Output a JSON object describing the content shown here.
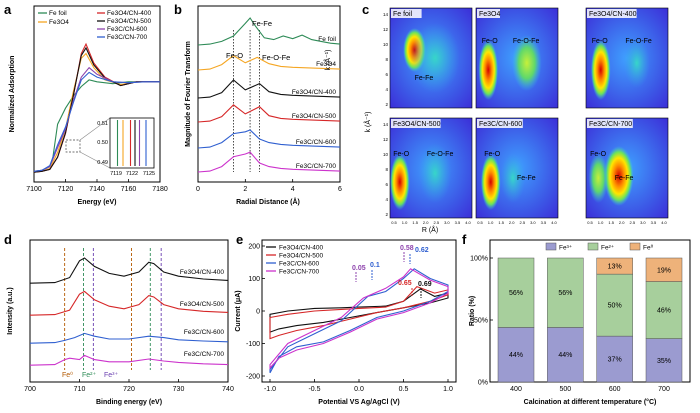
{
  "chart_data": [
    {
      "panel": "a",
      "type": "line",
      "xlabel": "Energy (eV)",
      "ylabel": "Normalized Adsorption",
      "xlim": [
        7100,
        7180
      ],
      "x_ticks": [
        "7100",
        "7120",
        "7140",
        "7160",
        "7180"
      ],
      "legend_left": [
        "Fe foil",
        "Fe3O4"
      ],
      "legend_right": [
        "Fe3O4/CN-400",
        "Fe3O4/CN-500",
        "Fe3C/CN-600",
        "Fe3C/CN-700"
      ],
      "colors": [
        "#2e8b57",
        "#f5a623",
        "#d62728",
        "#111111",
        "#8e44ad",
        "#2f5fd0"
      ],
      "inset": {
        "x_ticks": [
          "7119",
          "7122",
          "7125"
        ],
        "y_ticks": [
          "0.51",
          "0.50",
          "0.49"
        ],
        "edges": [
          7118.6,
          7119.7,
          7121.2,
          7122.1,
          7123.0,
          7124.3
        ]
      },
      "series": [
        {
          "name": "Fe foil",
          "x": [
            7100,
            7105,
            7110,
            7112,
            7115,
            7120,
            7125,
            7130,
            7135,
            7140,
            7150,
            7160,
            7170,
            7180
          ],
          "y": [
            0.05,
            0.06,
            0.1,
            0.2,
            0.55,
            0.72,
            0.85,
            0.95,
            1.02,
            1.0,
            0.98,
            1.0,
            1.0,
            1.0
          ]
        },
        {
          "name": "Fe3O4",
          "x": [
            7100,
            7105,
            7110,
            7115,
            7120,
            7125,
            7130,
            7133,
            7138,
            7145,
            7155,
            7165,
            7180
          ],
          "y": [
            0.04,
            0.05,
            0.08,
            0.25,
            0.5,
            0.9,
            1.25,
            1.3,
            1.15,
            1.02,
            0.97,
            1.0,
            1.0
          ]
        },
        {
          "name": "Fe3O4/CN-400",
          "x": [
            7100,
            7105,
            7110,
            7115,
            7120,
            7125,
            7130,
            7133,
            7138,
            7145,
            7155,
            7165,
            7180
          ],
          "y": [
            0.04,
            0.05,
            0.07,
            0.2,
            0.45,
            0.85,
            1.3,
            1.4,
            1.2,
            1.05,
            0.96,
            1.0,
            1.0
          ]
        },
        {
          "name": "Fe3O4/CN-500",
          "x": [
            7100,
            7105,
            7110,
            7115,
            7120,
            7125,
            7130,
            7133,
            7138,
            7145,
            7155,
            7165,
            7180
          ],
          "y": [
            0.04,
            0.05,
            0.07,
            0.2,
            0.46,
            0.86,
            1.28,
            1.36,
            1.18,
            1.04,
            0.96,
            1.0,
            1.0
          ]
        },
        {
          "name": "Fe3C/CN-600",
          "x": [
            7100,
            7105,
            7110,
            7115,
            7120,
            7125,
            7130,
            7135,
            7140,
            7150,
            7160,
            7170,
            7180
          ],
          "y": [
            0.05,
            0.06,
            0.1,
            0.3,
            0.5,
            0.8,
            1.05,
            1.15,
            1.08,
            1.0,
            0.99,
            1.0,
            1.0
          ]
        },
        {
          "name": "Fe3C/CN-700",
          "x": [
            7100,
            7105,
            7110,
            7115,
            7120,
            7125,
            7130,
            7135,
            7140,
            7150,
            7160,
            7170,
            7180
          ],
          "y": [
            0.05,
            0.06,
            0.11,
            0.33,
            0.52,
            0.78,
            1.02,
            1.1,
            1.05,
            1.0,
            0.99,
            1.0,
            1.0
          ]
        }
      ]
    },
    {
      "panel": "b",
      "type": "line",
      "xlabel": "Radial Distance (Å)",
      "ylabel": "Magnitude of Fourier Transform",
      "xlim": [
        0,
        6
      ],
      "x_ticks": [
        "0",
        "2",
        "4",
        "6"
      ],
      "annotations": [
        "Fe-Fe",
        "Fe-O",
        "Fe-O-Fe"
      ],
      "ref_lines": [
        1.5,
        2.2,
        2.6
      ],
      "series": [
        {
          "name": "Fe foil",
          "color": "#2e8b57",
          "x": [
            0,
            0.5,
            1,
            1.5,
            2,
            2.2,
            2.4,
            2.8,
            3.2,
            3.6,
            4,
            4.4,
            4.8,
            5.2,
            5.6,
            6
          ],
          "y": [
            0,
            0.05,
            0.2,
            0.5,
            1.2,
            1.5,
            1.1,
            0.4,
            0.3,
            0.5,
            0.35,
            0.55,
            0.3,
            0.2,
            0.1,
            0.05
          ]
        },
        {
          "name": "Fe3O4",
          "color": "#f5a623",
          "x": [
            0,
            0.5,
            1,
            1.5,
            2,
            2.5,
            3,
            3.5,
            4,
            5,
            6
          ],
          "y": [
            0,
            0.05,
            0.3,
            0.8,
            0.4,
            0.7,
            0.35,
            0.2,
            0.15,
            0.1,
            0.05
          ]
        },
        {
          "name": "Fe3O4/CN-400",
          "color": "#111111",
          "x": [
            0,
            0.5,
            1,
            1.5,
            2,
            2.6,
            3,
            3.5,
            4,
            5,
            6
          ],
          "y": [
            0,
            0.05,
            0.3,
            1.0,
            0.45,
            0.8,
            0.35,
            0.2,
            0.15,
            0.1,
            0.05
          ]
        },
        {
          "name": "Fe3O4/CN-500",
          "color": "#d62728",
          "x": [
            0,
            0.5,
            1,
            1.5,
            2,
            2.6,
            3,
            3.5,
            4,
            5,
            6
          ],
          "y": [
            0,
            0.05,
            0.3,
            0.95,
            0.45,
            0.85,
            0.35,
            0.2,
            0.15,
            0.1,
            0.05
          ]
        },
        {
          "name": "Fe3C/CN-600",
          "color": "#2f5fd0",
          "x": [
            0,
            0.5,
            1,
            1.5,
            2,
            2.2,
            2.6,
            3,
            3.5,
            4,
            5,
            6
          ],
          "y": [
            0,
            0.05,
            0.3,
            0.8,
            0.9,
            1.0,
            0.5,
            0.3,
            0.2,
            0.15,
            0.1,
            0.05
          ]
        },
        {
          "name": "Fe3C/CN-700",
          "color": "#cc33cc",
          "x": [
            0,
            0.5,
            1,
            1.5,
            2,
            2.2,
            2.6,
            3,
            3.5,
            4,
            5,
            6
          ],
          "y": [
            0,
            0.05,
            0.3,
            0.85,
            1.0,
            1.1,
            0.5,
            0.3,
            0.2,
            0.15,
            0.1,
            0.05
          ]
        }
      ]
    },
    {
      "panel": "c",
      "type": "heatmap",
      "x_label": "R (Å)",
      "y_label": "k (Å⁻¹)",
      "x_ticks": [
        "0.5",
        "1.0",
        "1.5",
        "2.0",
        "2.5",
        "3.0",
        "3.5",
        "4.0"
      ],
      "y_ticks": [
        "2",
        "4",
        "6",
        "8",
        "10",
        "12",
        "14"
      ],
      "maps": [
        {
          "title": "Fe foil",
          "labels": [
            "Fe-Fe"
          ]
        },
        {
          "title": "Fe3O4",
          "labels": [
            "Fe-O",
            "Fe-O-Fe"
          ]
        },
        {
          "title": "Fe3O4/CN-400",
          "labels": [
            "Fe-O",
            "Fe-O-Fe"
          ]
        },
        {
          "title": "Fe3O4/CN-500",
          "labels": [
            "Fe-O",
            "Fe-O-Fe"
          ]
        },
        {
          "title": "Fe3C/CN-600",
          "labels": [
            "Fe-O",
            "Fe-Fe"
          ]
        },
        {
          "title": "Fe3C/CN-700",
          "labels": [
            "Fe-O",
            "Fe-Fe"
          ]
        }
      ]
    },
    {
      "panel": "d",
      "type": "line",
      "xlabel": "Binding energy (eV)",
      "ylabel": "Intensity (a.u.)",
      "xlim": [
        700,
        740
      ],
      "x_ticks": [
        "700",
        "710",
        "720",
        "730",
        "740"
      ],
      "ref_labels": [
        "Fe⁰",
        "Fe²⁺",
        "Fe³⁺"
      ],
      "series": [
        {
          "name": "Fe3O4/CN-400",
          "color": "#111111",
          "x": [
            700,
            705,
            708,
            710,
            711,
            713,
            716,
            719,
            722,
            724,
            725,
            727,
            730,
            735,
            740
          ],
          "y": [
            0.1,
            0.12,
            0.3,
            0.9,
            1.0,
            0.7,
            0.45,
            0.35,
            0.5,
            0.85,
            0.8,
            0.5,
            0.35,
            0.25,
            0.2
          ]
        },
        {
          "name": "Fe3O4/CN-500",
          "color": "#d62728",
          "x": [
            700,
            705,
            708,
            710,
            711,
            713,
            716,
            719,
            722,
            724,
            725,
            727,
            730,
            735,
            740
          ],
          "y": [
            0.1,
            0.12,
            0.28,
            0.85,
            0.95,
            0.65,
            0.42,
            0.33,
            0.48,
            0.8,
            0.75,
            0.48,
            0.33,
            0.24,
            0.2
          ]
        },
        {
          "name": "Fe3C/CN-600",
          "color": "#2f5fd0",
          "x": [
            700,
            705,
            707,
            709,
            711,
            713,
            716,
            720,
            724,
            727,
            730,
            735,
            740
          ],
          "y": [
            0.1,
            0.12,
            0.2,
            0.3,
            0.45,
            0.35,
            0.25,
            0.25,
            0.35,
            0.3,
            0.22,
            0.18,
            0.15
          ]
        },
        {
          "name": "Fe3C/CN-700",
          "color": "#cc33cc",
          "x": [
            700,
            705,
            707,
            708,
            710,
            711,
            713,
            716,
            720,
            724,
            727,
            730,
            735,
            740
          ],
          "y": [
            0.1,
            0.12,
            0.3,
            0.35,
            0.3,
            0.45,
            0.3,
            0.22,
            0.22,
            0.32,
            0.25,
            0.2,
            0.15,
            0.12
          ]
        }
      ]
    },
    {
      "panel": "e",
      "type": "line",
      "xlabel": "Potential VS Ag/AgCl (V)",
      "ylabel": "Current (μA)",
      "xlim": [
        -1.0,
        1.0
      ],
      "ylim": [
        -200,
        200
      ],
      "x_ticks": [
        "-1.0",
        "-0.5",
        "0.0",
        "0.5",
        "1.0"
      ],
      "y_ticks": [
        "-200",
        "-100",
        "0",
        "100",
        "200"
      ],
      "peak_labels": [
        {
          "text": "0.05",
          "color": "#8e44ad"
        },
        {
          "text": "0.1",
          "color": "#2f5fd0"
        },
        {
          "text": "0.58",
          "color": "#8e44ad"
        },
        {
          "text": "0.62",
          "color": "#2f5fd0"
        },
        {
          "text": "0.65",
          "color": "#d62728"
        },
        {
          "text": "0.69",
          "color": "#111111"
        }
      ],
      "series": [
        {
          "name": "Fe3O4/CN-400",
          "color": "#111111",
          "x": [
            -1.0,
            -0.8,
            -0.5,
            -0.2,
            0,
            0.3,
            0.5,
            0.69,
            0.85,
            1.0,
            1.0,
            0.8,
            0.5,
            0.2,
            -0.1,
            -0.4,
            -0.7,
            -0.9,
            -1.0
          ],
          "y": [
            -10,
            0,
            8,
            10,
            12,
            15,
            30,
            68,
            45,
            55,
            40,
            25,
            10,
            -5,
            -20,
            -35,
            -45,
            -55,
            -65
          ]
        },
        {
          "name": "Fe3O4/CN-500",
          "color": "#d62728",
          "x": [
            -1.0,
            -0.8,
            -0.5,
            -0.2,
            0,
            0.3,
            0.5,
            0.65,
            0.85,
            1.0,
            1.0,
            0.8,
            0.5,
            0.2,
            -0.1,
            -0.4,
            -0.7,
            -0.9,
            -1.0
          ],
          "y": [
            -20,
            -10,
            0,
            5,
            8,
            12,
            30,
            75,
            55,
            65,
            50,
            30,
            10,
            -5,
            -25,
            -45,
            -60,
            -75,
            -85
          ]
        },
        {
          "name": "Fe3C/CN-600",
          "color": "#2f5fd0",
          "x": [
            -1.0,
            -0.8,
            -0.5,
            -0.2,
            0.1,
            0.3,
            0.5,
            0.62,
            0.8,
            1.0,
            1.0,
            0.8,
            0.5,
            0.2,
            -0.1,
            -0.4,
            -0.7,
            -0.9,
            -1.0
          ],
          "y": [
            -180,
            -110,
            -70,
            -30,
            45,
            60,
            100,
            130,
            100,
            80,
            60,
            30,
            0,
            -20,
            -60,
            -95,
            -110,
            -140,
            -190
          ]
        },
        {
          "name": "Fe3C/CN-700",
          "color": "#cc33cc",
          "x": [
            -1.0,
            -0.8,
            -0.5,
            -0.2,
            0.05,
            0.3,
            0.5,
            0.58,
            0.8,
            1.0,
            1.0,
            0.8,
            0.5,
            0.2,
            -0.1,
            -0.4,
            -0.7,
            -0.9,
            -1.0
          ],
          "y": [
            -165,
            -100,
            -60,
            -20,
            40,
            70,
            105,
            130,
            95,
            75,
            55,
            25,
            -5,
            -25,
            -65,
            -100,
            -120,
            -145,
            -175
          ]
        }
      ]
    },
    {
      "panel": "f",
      "type": "bar",
      "stacked": true,
      "xlabel": "Calcination at different temperature (°C)",
      "ylabel": "Ratio (%)",
      "categories": [
        "400",
        "500",
        "600",
        "700"
      ],
      "y_ticks": [
        "0%",
        "50%",
        "100%"
      ],
      "series": [
        {
          "name": "Fe³⁺",
          "color": "#9b9bd0",
          "values": [
            44,
            44,
            37,
            35
          ],
          "labels": [
            "44%",
            "44%",
            "37%",
            "35%"
          ]
        },
        {
          "name": "Fe²⁺",
          "color": "#a7cf9c",
          "values": [
            56,
            56,
            50,
            46
          ],
          "labels": [
            "56%",
            "56%",
            "50%",
            "46%"
          ]
        },
        {
          "name": "Fe⁰",
          "color": "#eeb27a",
          "values": [
            0,
            0,
            13,
            19
          ],
          "labels": [
            "",
            "",
            "13%",
            "19%"
          ]
        }
      ]
    }
  ],
  "panel_letters": [
    "a",
    "b",
    "c",
    "d",
    "e",
    "f"
  ]
}
